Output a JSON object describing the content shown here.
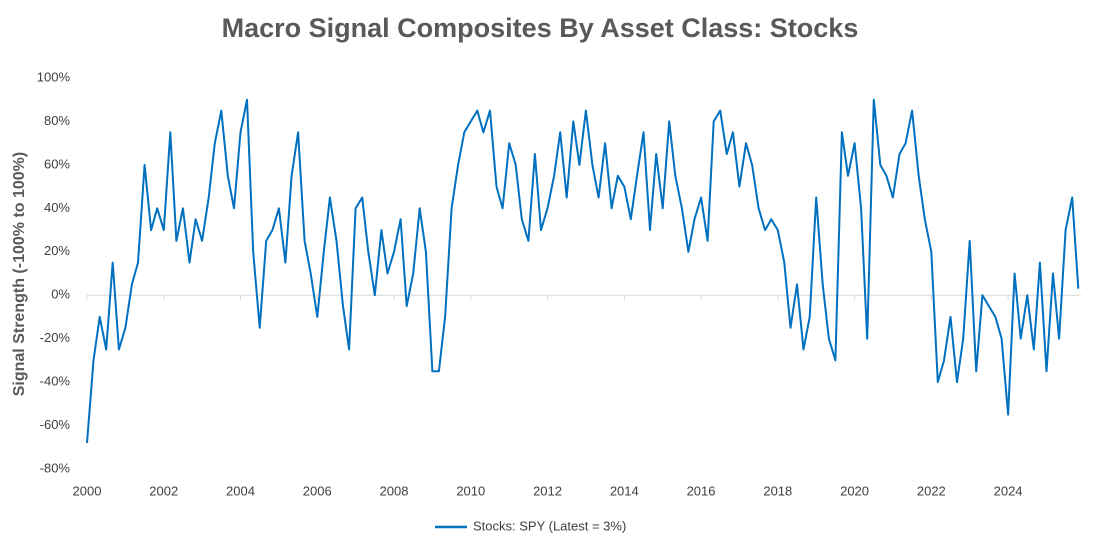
{
  "chart_data": {
    "type": "line",
    "title": "Macro Signal Composites By Asset Class: Stocks",
    "y_label": "Signal Strength (-100% to 100%)",
    "x": [
      2000,
      2000.17,
      2000.33,
      2000.5,
      2000.67,
      2000.83,
      2001,
      2001.17,
      2001.33,
      2001.5,
      2001.67,
      2001.83,
      2002,
      2002.17,
      2002.33,
      2002.5,
      2002.67,
      2002.83,
      2003,
      2003.17,
      2003.33,
      2003.5,
      2003.67,
      2003.83,
      2004,
      2004.17,
      2004.33,
      2004.5,
      2004.67,
      2004.83,
      2005,
      2005.17,
      2005.33,
      2005.5,
      2005.67,
      2005.83,
      2006,
      2006.17,
      2006.33,
      2006.5,
      2006.67,
      2006.83,
      2007,
      2007.17,
      2007.33,
      2007.5,
      2007.67,
      2007.83,
      2008,
      2008.17,
      2008.33,
      2008.5,
      2008.67,
      2008.83,
      2009,
      2009.17,
      2009.33,
      2009.5,
      2009.67,
      2009.83,
      2010,
      2010.17,
      2010.33,
      2010.5,
      2010.67,
      2010.83,
      2011,
      2011.17,
      2011.33,
      2011.5,
      2011.67,
      2011.83,
      2012,
      2012.17,
      2012.33,
      2012.5,
      2012.67,
      2012.83,
      2013,
      2013.17,
      2013.33,
      2013.5,
      2013.67,
      2013.83,
      2014,
      2014.17,
      2014.33,
      2014.5,
      2014.67,
      2014.83,
      2015,
      2015.17,
      2015.33,
      2015.5,
      2015.67,
      2015.83,
      2016,
      2016.17,
      2016.33,
      2016.5,
      2016.67,
      2016.83,
      2017,
      2017.17,
      2017.33,
      2017.5,
      2017.67,
      2017.83,
      2018,
      2018.17,
      2018.33,
      2018.5,
      2018.67,
      2018.83,
      2019,
      2019.17,
      2019.33,
      2019.5,
      2019.67,
      2019.83,
      2020,
      2020.17,
      2020.33,
      2020.5,
      2020.67,
      2020.83,
      2021,
      2021.17,
      2021.33,
      2021.5,
      2021.67,
      2021.83,
      2022,
      2022.17,
      2022.33,
      2022.5,
      2022.67,
      2022.83,
      2023,
      2023.17,
      2023.33,
      2023.5,
      2023.67,
      2023.83,
      2024,
      2024.17,
      2024.33,
      2024.5,
      2024.67,
      2024.83,
      2025,
      2025.17,
      2025.33,
      2025.5,
      2025.67,
      2025.83
    ],
    "series": [
      {
        "name": "Stocks: SPY (Latest = 3%)",
        "color": "#0070c0",
        "values": [
          -68,
          -30,
          -10,
          -25,
          15,
          -25,
          -15,
          5,
          15,
          60,
          30,
          40,
          30,
          75,
          25,
          40,
          15,
          35,
          25,
          45,
          70,
          85,
          55,
          40,
          75,
          90,
          20,
          -15,
          25,
          30,
          40,
          15,
          55,
          75,
          25,
          10,
          -10,
          20,
          45,
          25,
          -5,
          -25,
          40,
          45,
          20,
          0,
          30,
          10,
          20,
          35,
          -5,
          10,
          40,
          20,
          -35,
          -35,
          -10,
          40,
          60,
          75,
          80,
          85,
          75,
          85,
          50,
          40,
          70,
          60,
          35,
          25,
          65,
          30,
          40,
          55,
          75,
          45,
          80,
          60,
          85,
          60,
          45,
          70,
          40,
          55,
          50,
          35,
          55,
          75,
          30,
          65,
          40,
          80,
          55,
          40,
          20,
          35,
          45,
          25,
          80,
          85,
          65,
          75,
          50,
          70,
          60,
          40,
          30,
          35,
          30,
          15,
          -15,
          5,
          -25,
          -10,
          45,
          5,
          -20,
          -30,
          75,
          55,
          70,
          40,
          -20,
          90,
          60,
          55,
          45,
          65,
          70,
          85,
          55,
          35,
          20,
          -40,
          -30,
          -10,
          -40,
          -20,
          25,
          -35,
          0,
          -5,
          -10,
          -20,
          -55,
          10,
          -20,
          0,
          -25,
          15,
          -35,
          10,
          -20,
          30,
          45,
          3
        ]
      }
    ],
    "xlim": [
      2000,
      2025.9
    ],
    "xticks": [
      2000,
      2002,
      2004,
      2006,
      2008,
      2010,
      2012,
      2014,
      2016,
      2018,
      2020,
      2022,
      2024
    ],
    "ylim": [
      -80,
      100
    ],
    "yticks": [
      {
        "value": -80,
        "label": "-80%"
      },
      {
        "value": -60,
        "label": "-60%"
      },
      {
        "value": -40,
        "label": "-40%"
      },
      {
        "value": -20,
        "label": "-20%"
      },
      {
        "value": 0,
        "label": "0%"
      },
      {
        "value": 20,
        "label": "20%"
      },
      {
        "value": 40,
        "label": "40%"
      },
      {
        "value": 60,
        "label": "60%"
      },
      {
        "value": 80,
        "label": "80%"
      },
      {
        "value": 100,
        "label": "100%"
      }
    ],
    "legend": "bottom"
  }
}
